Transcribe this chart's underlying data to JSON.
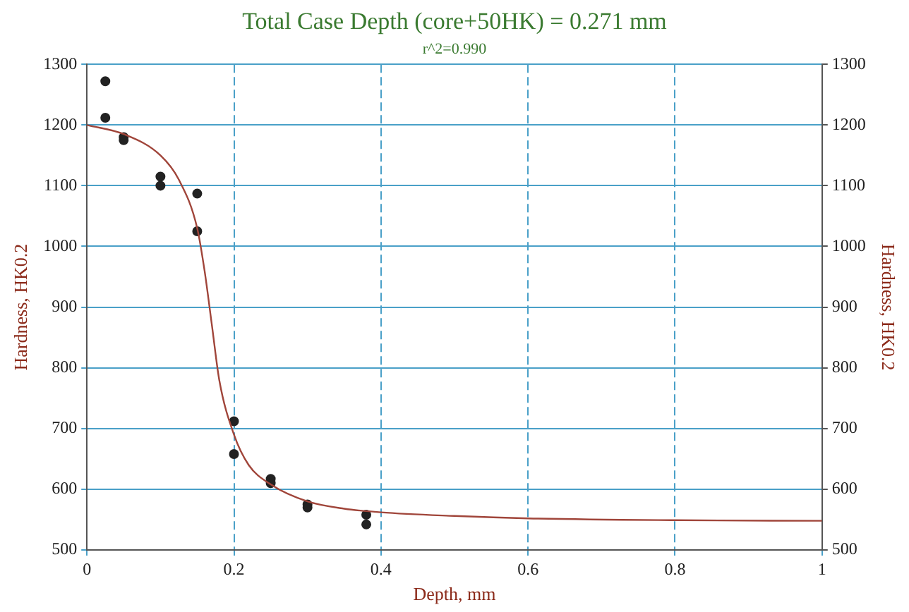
{
  "chart_data": {
    "type": "scatter",
    "title": "Total Case Depth (core+50HK) = 0.271 mm",
    "subtitle": "r^2=0.990",
    "xlabel": "Depth, mm",
    "ylabel": "Hardness, HK0.2",
    "y2label": "Hardness, HK0.2",
    "xlim": [
      0,
      1
    ],
    "xticks": [
      0,
      0.2,
      0.4,
      0.6,
      0.8,
      1
    ],
    "ylim": [
      500,
      1300
    ],
    "yticks": [
      500,
      600,
      700,
      800,
      900,
      1000,
      1100,
      1200,
      1300
    ],
    "y2lim": [
      500,
      1300
    ],
    "y2ticks": [
      500,
      600,
      700,
      800,
      900,
      1000,
      1100,
      1200,
      1300
    ],
    "grid": true,
    "legend": false,
    "marker": "circle",
    "series": [
      {
        "color": "#222222",
        "x": [
          0.025,
          0.025,
          0.05,
          0.05,
          0.1,
          0.1,
          0.15,
          0.15,
          0.2,
          0.2,
          0.25,
          0.25,
          0.3,
          0.3,
          0.38,
          0.38
        ],
        "values": [
          1272,
          1212,
          1180,
          1175,
          1115,
          1100,
          1087,
          1025,
          712,
          658,
          617,
          610,
          575,
          570,
          558,
          542
        ]
      },
      {
        "type": "line",
        "color": "#a0453a",
        "marker": "none",
        "line_style": "solid",
        "x": [
          0,
          0.05,
          0.1,
          0.125,
          0.15,
          0.16,
          0.17,
          0.18,
          0.2,
          0.22,
          0.25,
          0.3,
          0.35,
          0.4,
          0.5,
          0.6,
          0.8,
          1
        ],
        "values": [
          1200,
          1185,
          1150,
          1110,
          1030,
          960,
          870,
          780,
          690,
          640,
          608,
          580,
          568,
          562,
          556,
          552,
          549,
          548
        ]
      }
    ]
  }
}
